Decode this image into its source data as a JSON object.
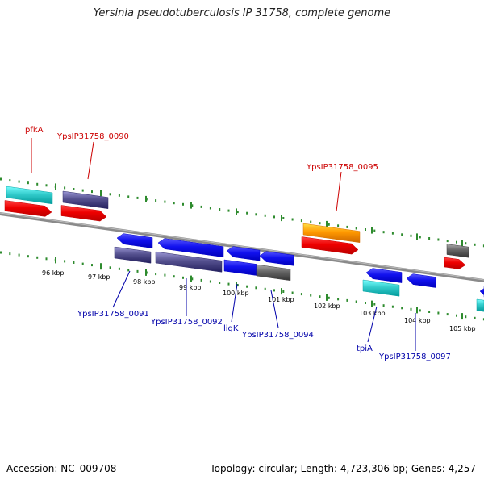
{
  "title": "Yersinia pseudotuberculosis IP 31758, complete genome",
  "footer": {
    "accession": "Accession: NC_009708",
    "topology": "Topology: circular; Length: 4,723,306 bp; Genes: 4,257"
  },
  "colors": {
    "forward_label": "#cc0000",
    "reverse_label": "#0000aa",
    "backbone": "#8a8a8a",
    "tick": "#2e8b2e",
    "cyan": "#33cccc",
    "purple": "#55518f",
    "red": "#ee0000",
    "blue": "#1111ee",
    "orange": "#ff9900",
    "gray": "#666666"
  },
  "ticks": [
    "96 kbp",
    "97 kbp",
    "98 kbp",
    "99 kbp",
    "100 kbp",
    "101 kbp",
    "102 kbp",
    "103 kbp",
    "104 kbp",
    "105 kbp"
  ],
  "forward_labels": [
    "pfkA",
    "YpsIP31758_0090",
    "YpsIP31758_0095"
  ],
  "reverse_labels": [
    "YpsIP31758_0091",
    "YpsIP31758_0092",
    "ligK",
    "YpsIP31758_0094",
    "tpiA",
    "YpsIP31758_0097"
  ]
}
